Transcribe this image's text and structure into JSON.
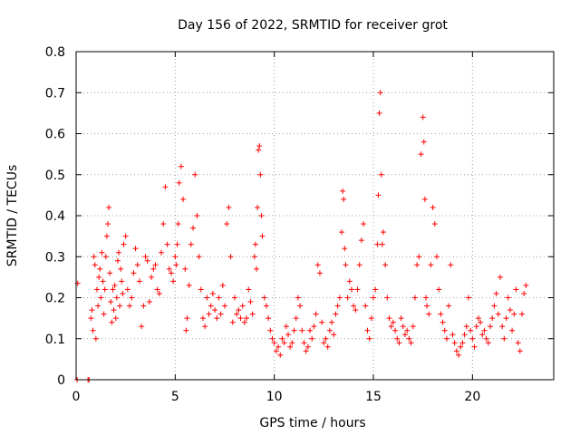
{
  "chart_data": {
    "type": "scatter",
    "title": "Day 156 of 2022, SRMTID for receiver grot",
    "xlabel": "GPS time / hours",
    "ylabel": "SRMTID / TECUs",
    "xlim": [
      0,
      24.1
    ],
    "ylim": [
      0,
      0.8
    ],
    "xticks": [
      0,
      5,
      10,
      15,
      20
    ],
    "xtick_labels": [
      "0",
      "5",
      "10",
      "15",
      "20"
    ],
    "yticks": [
      0,
      0.1,
      0.2,
      0.3,
      0.4,
      0.5,
      0.6,
      0.7,
      0.8
    ],
    "ytick_labels": [
      "0",
      "0.1",
      "0.2",
      "0.3",
      "0.4",
      "0.5",
      "0.6",
      "0.7",
      "0.8"
    ],
    "grid": true,
    "marker": "plus",
    "series": [
      {
        "name": "SRMTID",
        "color": "#ff0000",
        "x": [
          0.05,
          0.08,
          0.6,
          0.65,
          0.75,
          0.8,
          0.85,
          0.9,
          0.95,
          1.0,
          1.05,
          1.1,
          1.15,
          1.2,
          1.25,
          1.3,
          1.35,
          1.4,
          1.45,
          1.5,
          1.55,
          1.6,
          1.65,
          1.7,
          1.75,
          1.8,
          1.85,
          1.9,
          1.95,
          2.0,
          2.05,
          2.1,
          2.15,
          2.2,
          2.25,
          2.3,
          2.35,
          2.4,
          2.5,
          2.6,
          2.7,
          2.8,
          2.9,
          3.0,
          3.1,
          3.2,
          3.3,
          3.4,
          3.5,
          3.6,
          3.7,
          3.8,
          3.9,
          4.0,
          4.1,
          4.2,
          4.3,
          4.4,
          4.5,
          4.6,
          4.7,
          4.8,
          4.9,
          5.0,
          5.05,
          5.1,
          5.15,
          5.2,
          5.3,
          5.4,
          5.5,
          5.55,
          5.6,
          5.7,
          5.8,
          5.9,
          6.0,
          6.1,
          6.2,
          6.3,
          6.4,
          6.5,
          6.6,
          6.7,
          6.8,
          6.9,
          7.0,
          7.1,
          7.2,
          7.3,
          7.4,
          7.5,
          7.6,
          7.7,
          7.8,
          7.9,
          8.0,
          8.1,
          8.2,
          8.3,
          8.4,
          8.5,
          8.6,
          8.7,
          8.8,
          8.9,
          9.0,
          9.05,
          9.1,
          9.15,
          9.2,
          9.25,
          9.3,
          9.35,
          9.4,
          9.5,
          9.6,
          9.7,
          9.8,
          9.9,
          10.0,
          10.1,
          10.2,
          10.3,
          10.4,
          10.5,
          10.6,
          10.7,
          10.8,
          10.9,
          11.0,
          11.1,
          11.2,
          11.3,
          11.4,
          11.5,
          11.6,
          11.7,
          11.8,
          11.9,
          12.0,
          12.1,
          12.2,
          12.3,
          12.4,
          12.5,
          12.6,
          12.7,
          12.8,
          12.9,
          13.0,
          13.1,
          13.2,
          13.3,
          13.4,
          13.45,
          13.5,
          13.55,
          13.6,
          13.7,
          13.8,
          13.9,
          14.0,
          14.1,
          14.2,
          14.3,
          14.4,
          14.5,
          14.6,
          14.7,
          14.8,
          14.9,
          15.0,
          15.1,
          15.2,
          15.25,
          15.3,
          15.35,
          15.4,
          15.45,
          15.5,
          15.6,
          15.7,
          15.8,
          15.9,
          16.0,
          16.1,
          16.2,
          16.3,
          16.4,
          16.5,
          16.6,
          16.7,
          16.8,
          16.9,
          17.0,
          17.1,
          17.2,
          17.3,
          17.4,
          17.5,
          17.55,
          17.6,
          17.65,
          17.7,
          17.8,
          17.9,
          18.0,
          18.1,
          18.2,
          18.3,
          18.4,
          18.5,
          18.6,
          18.7,
          18.8,
          18.9,
          19.0,
          19.1,
          19.2,
          19.3,
          19.4,
          19.5,
          19.6,
          19.7,
          19.8,
          19.9,
          20.0,
          20.1,
          20.2,
          20.3,
          20.4,
          20.5,
          20.6,
          20.7,
          20.8,
          20.9,
          21.0,
          21.1,
          21.2,
          21.3,
          21.4,
          21.5,
          21.6,
          21.7,
          21.8,
          21.9,
          22.0,
          22.1,
          22.2,
          22.3,
          22.4,
          22.5,
          22.6,
          22.7
        ],
        "y": [
          0.0,
          0.235,
          0.0,
          0.0,
          0.15,
          0.17,
          0.12,
          0.3,
          0.28,
          0.1,
          0.22,
          0.18,
          0.25,
          0.27,
          0.2,
          0.31,
          0.24,
          0.16,
          0.22,
          0.3,
          0.35,
          0.38,
          0.42,
          0.26,
          0.19,
          0.14,
          0.22,
          0.17,
          0.23,
          0.15,
          0.2,
          0.29,
          0.31,
          0.18,
          0.27,
          0.24,
          0.21,
          0.33,
          0.35,
          0.22,
          0.18,
          0.2,
          0.26,
          0.32,
          0.28,
          0.24,
          0.13,
          0.18,
          0.3,
          0.29,
          0.19,
          0.25,
          0.27,
          0.28,
          0.22,
          0.21,
          0.31,
          0.38,
          0.47,
          0.33,
          0.27,
          0.26,
          0.24,
          0.3,
          0.28,
          0.33,
          0.38,
          0.48,
          0.52,
          0.44,
          0.27,
          0.12,
          0.15,
          0.23,
          0.33,
          0.37,
          0.5,
          0.4,
          0.3,
          0.22,
          0.15,
          0.13,
          0.2,
          0.16,
          0.18,
          0.21,
          0.17,
          0.15,
          0.2,
          0.16,
          0.23,
          0.18,
          0.38,
          0.42,
          0.3,
          0.14,
          0.2,
          0.16,
          0.17,
          0.15,
          0.18,
          0.14,
          0.15,
          0.22,
          0.19,
          0.16,
          0.3,
          0.33,
          0.27,
          0.42,
          0.56,
          0.57,
          0.5,
          0.4,
          0.35,
          0.2,
          0.18,
          0.15,
          0.12,
          0.1,
          0.09,
          0.07,
          0.08,
          0.06,
          0.1,
          0.09,
          0.13,
          0.11,
          0.08,
          0.09,
          0.12,
          0.15,
          0.2,
          0.18,
          0.12,
          0.09,
          0.07,
          0.08,
          0.12,
          0.1,
          0.13,
          0.16,
          0.28,
          0.26,
          0.14,
          0.09,
          0.1,
          0.08,
          0.12,
          0.14,
          0.11,
          0.16,
          0.18,
          0.2,
          0.36,
          0.46,
          0.44,
          0.32,
          0.28,
          0.2,
          0.24,
          0.22,
          0.18,
          0.17,
          0.22,
          0.28,
          0.34,
          0.38,
          0.18,
          0.12,
          0.1,
          0.15,
          0.2,
          0.22,
          0.33,
          0.45,
          0.65,
          0.7,
          0.5,
          0.33,
          0.36,
          0.28,
          0.2,
          0.15,
          0.13,
          0.14,
          0.12,
          0.1,
          0.09,
          0.15,
          0.13,
          0.11,
          0.12,
          0.1,
          0.09,
          0.13,
          0.2,
          0.28,
          0.3,
          0.55,
          0.64,
          0.58,
          0.44,
          0.2,
          0.18,
          0.16,
          0.28,
          0.42,
          0.38,
          0.3,
          0.22,
          0.16,
          0.14,
          0.12,
          0.1,
          0.18,
          0.28,
          0.11,
          0.09,
          0.07,
          0.06,
          0.08,
          0.09,
          0.11,
          0.13,
          0.2,
          0.12,
          0.1,
          0.08,
          0.13,
          0.15,
          0.14,
          0.11,
          0.12,
          0.1,
          0.09,
          0.13,
          0.15,
          0.18,
          0.21,
          0.16,
          0.25,
          0.13,
          0.1,
          0.15,
          0.2,
          0.17,
          0.12,
          0.16,
          0.22,
          0.09,
          0.07,
          0.16,
          0.21,
          0.23
        ]
      }
    ]
  }
}
